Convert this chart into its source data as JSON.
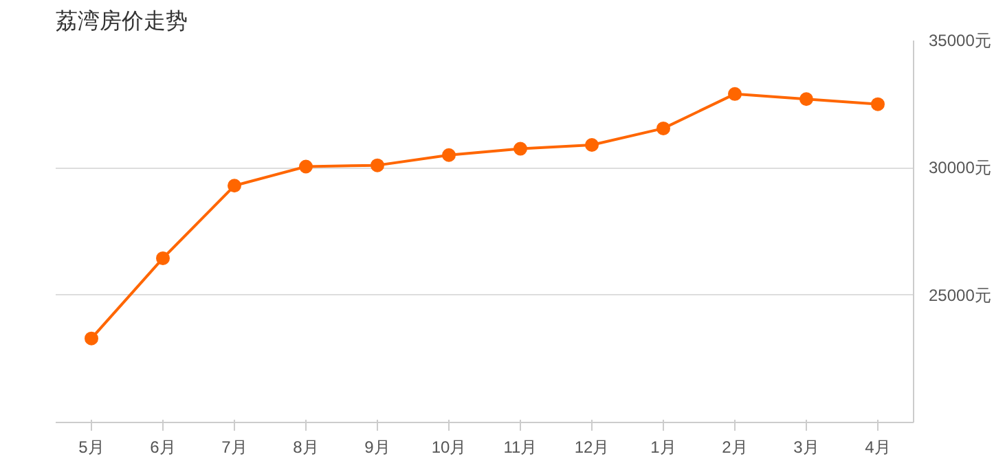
{
  "chart_data": {
    "type": "line",
    "title": "荔湾房价走势",
    "categories": [
      "5月",
      "6月",
      "7月",
      "8月",
      "9月",
      "10月",
      "11月",
      "12月",
      "1月",
      "2月",
      "3月",
      "4月"
    ],
    "series": [
      {
        "color": "#ff6600",
        "values": [
          23300,
          26450,
          29300,
          30050,
          30100,
          30500,
          30750,
          30900,
          31550,
          32900,
          32700,
          32500
        ]
      }
    ],
    "ylim": [
      20000,
      35000
    ],
    "yticks": [
      {
        "value": 25000,
        "label": "25000元"
      },
      {
        "value": 30000,
        "label": "30000元"
      },
      {
        "value": 35000,
        "label": "35000元"
      }
    ],
    "grid": "y",
    "marker": "circle",
    "line_style": "solid"
  }
}
